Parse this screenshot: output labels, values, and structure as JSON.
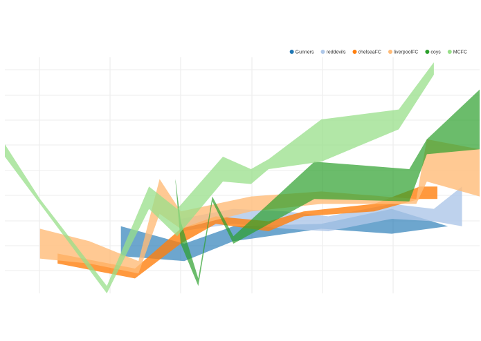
{
  "chart_data": {
    "type": "area",
    "title": "",
    "xlabel": "",
    "ylabel": "",
    "grid": true,
    "legend_position": "top-right",
    "xlim": [
      0,
      13.5
    ],
    "ylim": [
      0,
      9.5
    ],
    "series": [
      {
        "name": "Gunners",
        "color": "#1f77b4",
        "opacity": 0.65,
        "points": [
          {
            "x": 3.3,
            "lo": 1.5,
            "hi": 2.7
          },
          {
            "x": 5.1,
            "lo": 1.3,
            "hi": 2.0
          },
          {
            "x": 6.5,
            "lo": 2.1,
            "hi": 2.7
          },
          {
            "x": 9.0,
            "lo": 2.6,
            "hi": 2.8
          },
          {
            "x": 11.0,
            "lo": 2.4,
            "hi": 3.4
          },
          {
            "x": 12.6,
            "lo": 2.7,
            "hi": 2.7
          }
        ]
      },
      {
        "name": "reddevils",
        "color": "#aec7e8",
        "opacity": 0.8,
        "points": [
          {
            "x": 5.0,
            "lo": 2.5,
            "hi": 3.0
          },
          {
            "x": 6.5,
            "lo": 2.8,
            "hi": 3.4
          },
          {
            "x": 8.0,
            "lo": 2.6,
            "hi": 3.3
          },
          {
            "x": 9.2,
            "lo": 2.5,
            "hi": 3.1
          },
          {
            "x": 11.0,
            "lo": 3.0,
            "hi": 3.6
          },
          {
            "x": 12.2,
            "lo": 2.9,
            "hi": 3.4
          },
          {
            "x": 13.0,
            "lo": 2.7,
            "hi": 4.3
          }
        ]
      },
      {
        "name": "chelseaFC",
        "color": "#ff7f0e",
        "opacity": 0.8,
        "points": [
          {
            "x": 1.5,
            "lo": 1.2,
            "hi": 1.6
          },
          {
            "x": 3.7,
            "lo": 0.6,
            "hi": 1.0
          },
          {
            "x": 5.0,
            "lo": 2.0,
            "hi": 2.6
          },
          {
            "x": 6.0,
            "lo": 2.8,
            "hi": 3.1
          },
          {
            "x": 7.5,
            "lo": 2.5,
            "hi": 2.9
          },
          {
            "x": 8.5,
            "lo": 3.1,
            "hi": 3.3
          },
          {
            "x": 10.5,
            "lo": 3.3,
            "hi": 3.6
          },
          {
            "x": 11.8,
            "lo": 3.8,
            "hi": 4.3
          },
          {
            "x": 12.3,
            "lo": 3.8,
            "hi": 4.3
          }
        ]
      },
      {
        "name": "liverpoolFC",
        "color": "#ffbb78",
        "opacity": 0.8,
        "points": [
          {
            "x": 1.0,
            "lo": 1.4,
            "hi": 2.6
          },
          {
            "x": 2.4,
            "lo": 1.2,
            "hi": 2.1
          },
          {
            "x": 3.8,
            "lo": 0.8,
            "hi": 1.3
          },
          {
            "x": 4.4,
            "lo": 3.2,
            "hi": 4.6
          },
          {
            "x": 5.0,
            "lo": 2.6,
            "hi": 3.3
          },
          {
            "x": 7.0,
            "lo": 3.3,
            "hi": 3.9
          },
          {
            "x": 9.0,
            "lo": 3.6,
            "hi": 4.1
          },
          {
            "x": 11.7,
            "lo": 3.6,
            "hi": 3.8
          },
          {
            "x": 12.0,
            "lo": 4.5,
            "hi": 6.2
          },
          {
            "x": 13.5,
            "lo": 3.9,
            "hi": 5.8
          }
        ]
      },
      {
        "name": "coys",
        "color": "#2ca02c",
        "opacity": 0.7,
        "points": [
          {
            "x": 4.85,
            "lo": 4.5,
            "hi": 4.6
          },
          {
            "x": 5.0,
            "lo": 2.0,
            "hi": 2.9
          },
          {
            "x": 5.5,
            "lo": 0.3,
            "hi": 0.6
          },
          {
            "x": 5.9,
            "lo": 3.7,
            "hi": 3.9
          },
          {
            "x": 6.5,
            "lo": 2.0,
            "hi": 2.3
          },
          {
            "x": 8.8,
            "lo": 3.8,
            "hi": 5.3
          },
          {
            "x": 11.5,
            "lo": 3.7,
            "hi": 5.0
          },
          {
            "x": 12.0,
            "lo": 5.6,
            "hi": 6.2
          },
          {
            "x": 13.5,
            "lo": 5.8,
            "hi": 8.2
          }
        ]
      },
      {
        "name": "MCFC",
        "color": "#98df8a",
        "opacity": 0.75,
        "points": [
          {
            "x": 0.0,
            "lo": 5.5,
            "hi": 6.0
          },
          {
            "x": 1.0,
            "lo": 3.6,
            "hi": 3.8
          },
          {
            "x": 2.9,
            "lo": 0.0,
            "hi": 0.3
          },
          {
            "x": 4.1,
            "lo": 3.4,
            "hi": 4.3
          },
          {
            "x": 4.9,
            "lo": 2.3,
            "hi": 3.4
          },
          {
            "x": 6.2,
            "lo": 4.5,
            "hi": 5.5
          },
          {
            "x": 7.0,
            "lo": 4.4,
            "hi": 5.0
          },
          {
            "x": 7.5,
            "lo": 5.0,
            "hi": 5.4
          },
          {
            "x": 9.0,
            "lo": 5.3,
            "hi": 7.0
          },
          {
            "x": 11.2,
            "lo": 6.6,
            "hi": 7.4
          },
          {
            "x": 12.2,
            "lo": 8.8,
            "hi": 9.3
          }
        ]
      }
    ]
  }
}
